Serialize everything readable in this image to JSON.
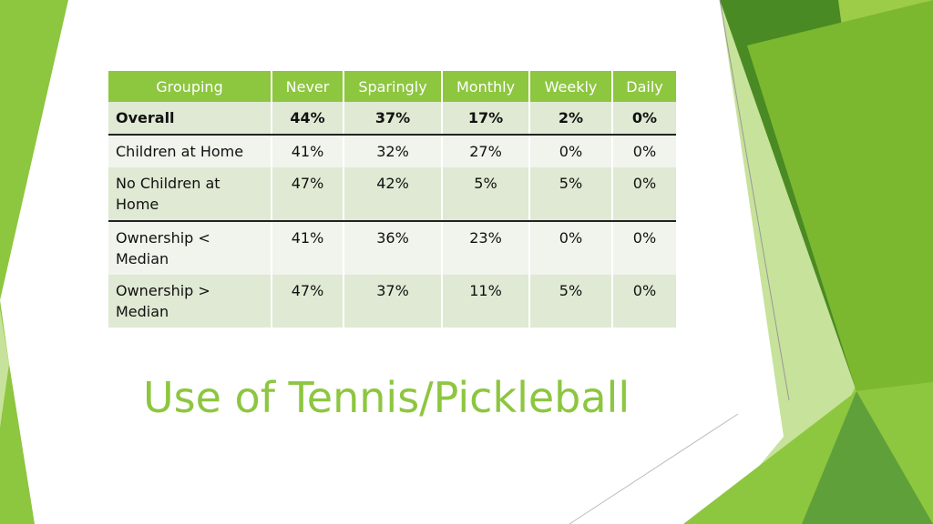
{
  "slide": {
    "title": "Use of Tennis/Pickleball"
  },
  "colors": {
    "accent": "#8dc63f",
    "dark_green": "#4a8a24",
    "light_green": "#c7e29a",
    "row_odd": "#dfe9d3",
    "row_even": "#f0f4ec"
  },
  "table": {
    "headers": [
      "Grouping",
      "Never",
      "Sparingly",
      "Monthly",
      "Weekly",
      "Daily"
    ],
    "rows": [
      [
        "Overall",
        "44%",
        "37%",
        "17%",
        "2%",
        "0%"
      ],
      [
        "Children at Home",
        "41%",
        "32%",
        "27%",
        "0%",
        "0%"
      ],
      [
        "No Children at Home",
        "47%",
        "42%",
        "5%",
        "5%",
        "0%"
      ],
      [
        "Ownership < Median",
        "41%",
        "36%",
        "23%",
        "0%",
        "0%"
      ],
      [
        "Ownership > Median",
        "47%",
        "37%",
        "11%",
        "5%",
        "0%"
      ]
    ]
  }
}
